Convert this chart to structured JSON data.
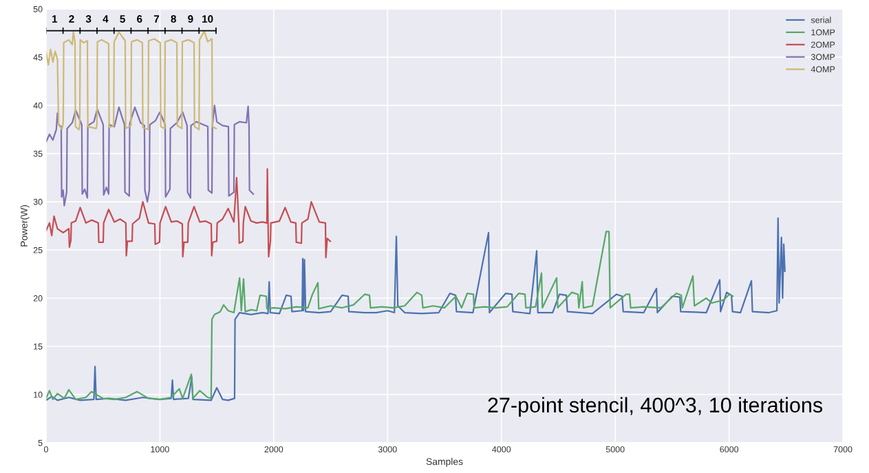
{
  "chart_data": {
    "type": "line",
    "xlabel": "Samples",
    "ylabel": "Power(W)",
    "xlim": [
      0,
      7000
    ],
    "xticks": [
      0,
      1000,
      2000,
      3000,
      4000,
      5000,
      6000,
      7000
    ],
    "ylim": [
      5,
      50
    ],
    "yticks": [
      5,
      10,
      15,
      20,
      25,
      30,
      35,
      40,
      45,
      50
    ],
    "grid": true,
    "legend": "top right",
    "marker": "none",
    "line_style": "solid",
    "annotations": [
      "1",
      "2",
      "3",
      "4",
      "5",
      "6",
      "7",
      "8",
      "9",
      "10",
      "27-point stencil, 400^3, 10 iterations"
    ],
    "series": [
      {
        "name": "serial",
        "color": "#4c72b0",
        "x": [
          0,
          50,
          100,
          200,
          300,
          420,
          430,
          440,
          550,
          700,
          850,
          1000,
          1100,
          1110,
          1120,
          1250,
          1280,
          1290,
          1450,
          1500,
          1550,
          1600,
          1656,
          1660,
          1700,
          1800,
          1900,
          1950,
          1960,
          1970,
          2050,
          2110,
          2152,
          2160,
          2250,
          2255,
          2262,
          2270,
          2280,
          2400,
          2500,
          2600,
          2654,
          2660,
          2800,
          2900,
          3000,
          3060,
          3077,
          3090,
          3150,
          3300,
          3450,
          3548,
          3597,
          3605,
          3750,
          3887,
          3895,
          4038,
          4093,
          4100,
          4250,
          4310,
          4320,
          4450,
          4510,
          4570,
          4580,
          4800,
          5011,
          5060,
          5070,
          5250,
          5362,
          5370,
          5501,
          5568,
          5575,
          5800,
          5918,
          5925,
          5979,
          6021,
          6030,
          6100,
          6196,
          6205,
          6350,
          6420,
          6430,
          6440,
          6460,
          6470,
          6480,
          6490
        ],
        "values": [
          9.4,
          9.8,
          9.4,
          9.7,
          9.4,
          9.5,
          12.9,
          9.5,
          9.6,
          9.4,
          9.7,
          9.5,
          9.6,
          11.5,
          9.5,
          9.6,
          11.8,
          9.5,
          9.4,
          10.7,
          9.5,
          9.4,
          9.6,
          17.8,
          18.5,
          18.3,
          18.5,
          18.4,
          21.7,
          18.5,
          18.4,
          20.3,
          20.2,
          18.6,
          18.7,
          24.1,
          18.7,
          24,
          18.6,
          18.5,
          18.6,
          20.3,
          20.2,
          18.6,
          18.5,
          18.5,
          18.7,
          18.5,
          26.4,
          19.2,
          18.5,
          18.4,
          18.5,
          20.5,
          20.3,
          18.6,
          18.5,
          26.8,
          18.5,
          20.5,
          20.4,
          18.6,
          18.4,
          24.9,
          18.5,
          18.5,
          20.4,
          20.3,
          18.6,
          18.4,
          20.4,
          20.2,
          18.6,
          18.5,
          21,
          18.5,
          20.2,
          20.1,
          18.6,
          18.5,
          21.9,
          18.6,
          20.6,
          20.3,
          18.6,
          18.5,
          21.8,
          18.6,
          18.5,
          18.7,
          28.3,
          19.5,
          26.3,
          20,
          25.6,
          22.8
        ]
      },
      {
        "name": "1OMP",
        "color": "#55a868",
        "x": [
          0,
          30,
          60,
          100,
          160,
          200,
          260,
          350,
          400,
          500,
          600,
          700,
          800,
          900,
          1000,
          1100,
          1170,
          1200,
          1276,
          1290,
          1350,
          1420,
          1450,
          1457,
          1480,
          1530,
          1560,
          1600,
          1650,
          1700,
          1715,
          1735,
          1750,
          1800,
          1850,
          1880,
          1934,
          1940,
          2000,
          2100,
          2200,
          2300,
          2340,
          2388,
          2395,
          2500,
          2600,
          2700,
          2799,
          2841,
          2850,
          2950,
          3050,
          3150,
          3258,
          3300,
          3310,
          3400,
          3500,
          3600,
          3650,
          3700,
          3754,
          3760,
          3850,
          3950,
          4050,
          4153,
          4207,
          4215,
          4300,
          4352,
          4360,
          4485,
          4495,
          4618,
          4673,
          4680,
          4710,
          4720,
          4800,
          4920,
          4945,
          4955,
          5096,
          5126,
          5135,
          5250,
          5400,
          5537,
          5580,
          5590,
          5682,
          5695,
          5800,
          5850,
          5950,
          6003,
          6033
        ],
        "values": [
          9.6,
          10.4,
          9.5,
          10.1,
          9.6,
          10.5,
          9.5,
          9.7,
          10.3,
          9.6,
          9.5,
          9.7,
          10.3,
          9.6,
          9.5,
          9.7,
          10.6,
          9.6,
          12.1,
          9.6,
          10.4,
          9.7,
          9.6,
          17.8,
          18.3,
          18.6,
          19.3,
          18.7,
          18.5,
          22.1,
          18.7,
          22,
          18.6,
          18.8,
          18.7,
          20.3,
          20.2,
          18.9,
          19,
          18.9,
          19.1,
          19,
          20.4,
          21.6,
          18.9,
          19.2,
          19,
          19.3,
          20.4,
          20.3,
          19,
          19.1,
          19,
          19.2,
          20.6,
          20.3,
          19,
          19.2,
          19,
          20.2,
          19,
          20.5,
          20.4,
          19,
          19.1,
          19,
          19.1,
          20.5,
          20.4,
          19,
          19.1,
          22.6,
          19,
          22.1,
          19,
          20.6,
          20.4,
          19,
          21.7,
          19,
          19.2,
          26.9,
          26.9,
          19,
          20.4,
          20.4,
          19,
          19.1,
          19,
          20.5,
          20.3,
          19,
          22.3,
          19.2,
          20,
          19.5,
          19.8,
          20.4,
          20.2
        ]
      },
      {
        "name": "2OMP",
        "color": "#c44e52",
        "x": [
          0,
          30,
          50,
          70,
          100,
          150,
          200,
          205,
          218,
          222,
          260,
          300,
          350,
          400,
          459,
          463,
          502,
          506,
          550,
          600,
          650,
          701,
          705,
          715,
          756,
          760,
          820,
          850,
          900,
          955,
          959,
          997,
          1001,
          1050,
          1100,
          1150,
          1197,
          1201,
          1212,
          1245,
          1249,
          1300,
          1350,
          1400,
          1451,
          1455,
          1465,
          1499,
          1503,
          1550,
          1600,
          1650,
          1674,
          1693,
          1697,
          1729,
          1733,
          1750,
          1800,
          1850,
          1900,
          1940,
          1944,
          1950,
          1955,
          1971,
          1975,
          2050,
          2100,
          2150,
          2194,
          2198,
          2243,
          2247,
          2300,
          2330,
          2400,
          2454,
          2458,
          2470,
          2497
        ],
        "values": [
          27,
          27.8,
          26.5,
          28.5,
          27.2,
          26.8,
          27.2,
          25.3,
          26,
          27.8,
          28,
          29.4,
          27.8,
          28.1,
          27.8,
          25.8,
          25.8,
          27.8,
          29.2,
          27.9,
          28.2,
          27.8,
          24.4,
          25.9,
          25.9,
          27.7,
          28.3,
          30,
          27.8,
          27.7,
          25.6,
          25.8,
          27.8,
          29.5,
          27.9,
          28,
          27.7,
          24.3,
          25.8,
          25.8,
          27.8,
          29.5,
          27.9,
          28,
          27.7,
          24.4,
          25.8,
          25.9,
          27.8,
          28.2,
          29.3,
          27.9,
          32.5,
          27.8,
          25.7,
          25.9,
          27.8,
          29.5,
          28,
          27.8,
          27.9,
          27.8,
          33.4,
          27.9,
          24.3,
          25.9,
          27.8,
          28,
          29.4,
          27.9,
          27.8,
          25.8,
          25.7,
          27.8,
          28.2,
          30,
          27.9,
          27.8,
          24.2,
          26.2,
          25.9
        ]
      },
      {
        "name": "3OMP",
        "color": "#8172b2",
        "x": [
          0,
          30,
          60,
          90,
          100,
          110,
          133,
          137,
          150,
          160,
          181,
          185,
          230,
          260,
          314,
          318,
          340,
          363,
          367,
          420,
          450,
          502,
          506,
          530,
          550,
          554,
          600,
          640,
          689,
          693,
          731,
          735,
          780,
          830,
          864,
          868,
          890,
          907,
          911,
          960,
          1000,
          1046,
          1050,
          1088,
          1092,
          1150,
          1200,
          1239,
          1243,
          1269,
          1273,
          1320,
          1380,
          1421,
          1425,
          1457,
          1461,
          1480,
          1500,
          1550,
          1602,
          1606,
          1650,
          1654,
          1700,
          1760,
          1775,
          1783,
          1787,
          1820
        ],
        "values": [
          36.2,
          37,
          36.4,
          37.5,
          39.2,
          38,
          37.8,
          30.5,
          31.2,
          29.6,
          31,
          37.6,
          38.2,
          39.5,
          38,
          30.8,
          31.3,
          30.4,
          37.9,
          38.3,
          39.6,
          38,
          30.7,
          31.5,
          30.8,
          38,
          37.8,
          39.8,
          38,
          31,
          30.6,
          38.1,
          39.8,
          38.2,
          37.9,
          31.2,
          30,
          31.2,
          38,
          38.4,
          39.3,
          38,
          30.5,
          31.3,
          37.6,
          38.2,
          39.3,
          37.9,
          31,
          30.4,
          37.9,
          38.3,
          38,
          37.8,
          31.2,
          30.9,
          37.9,
          40,
          38.3,
          37.9,
          37.8,
          30.6,
          31,
          38,
          38.3,
          38.2,
          39.9,
          37.9,
          31.2,
          30.8
        ]
      },
      {
        "name": "4OMP",
        "color": "#ccb974",
        "x": [
          0,
          20,
          40,
          60,
          80,
          100,
          110,
          140,
          151,
          155,
          200,
          230,
          240,
          254,
          258,
          290,
          296,
          300,
          330,
          363,
          367,
          440,
          447,
          451,
          490,
          550,
          554,
          594,
          598,
          640,
          695,
          699,
          746,
          750,
          800,
          846,
          850,
          897,
          901,
          950,
          1003,
          1007,
          1042,
          1046,
          1100,
          1149,
          1153,
          1193,
          1197,
          1250,
          1300,
          1304,
          1344,
          1348,
          1390,
          1420,
          1457,
          1461,
          1493
        ],
        "values": [
          45.5,
          44.2,
          45.8,
          44.5,
          45.6,
          44.8,
          38,
          37.5,
          38.2,
          46.5,
          46.8,
          46.3,
          47.6,
          46.6,
          37.8,
          37.5,
          38,
          46.8,
          46.5,
          46.7,
          37.8,
          37.6,
          38,
          46.6,
          46.8,
          46.4,
          37.7,
          37.9,
          46.6,
          47.6,
          46.7,
          37.6,
          37.9,
          46.6,
          46.8,
          46.5,
          37.7,
          37.5,
          46.7,
          46.9,
          46.5,
          37.8,
          37.6,
          46.6,
          46.8,
          46.5,
          37.9,
          37.6,
          46.6,
          46.8,
          46.5,
          37.8,
          37.5,
          46.8,
          47.7,
          46.6,
          46.9,
          37.8,
          37.6
        ]
      }
    ]
  }
}
